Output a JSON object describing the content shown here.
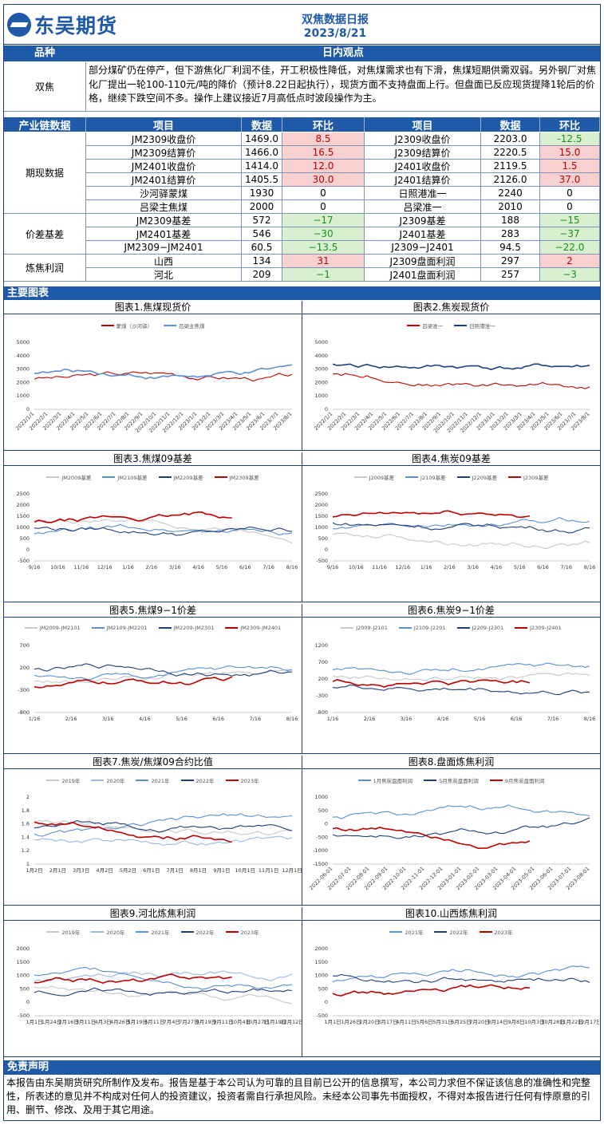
{
  "header": {
    "company": "东吴期货",
    "report_title": "双焦数据日报",
    "date": "2023/8/21",
    "logo_mark": "SCF"
  },
  "view_section": {
    "col_variety": "品种",
    "col_view": "日内观点",
    "variety": "双焦",
    "text": "部分煤矿仍在停产，但下游焦化厂利润不佳，开工积极性降低，对焦煤需求也有下滑，焦煤短期供需双弱。另外钢厂对焦化厂提出一轮100-110元/吨的降价（预计8.22日起执行），现货方面不支持盘面上行。但盘面已反应现货提降1轮后的价格，继续下跌空间不多。操作上建议接近7月高低点时波段操作为主。"
  },
  "table": {
    "headers": [
      "产业链数据",
      "项目",
      "数据",
      "环比",
      "项目",
      "数据",
      "环比"
    ],
    "groups": [
      {
        "name": "期现数据",
        "rows": [
          [
            "JM2309收盘价",
            "1469.0",
            "8.5",
            "J2309收盘价",
            "2203.0",
            "-12.5"
          ],
          [
            "JM2309结算价",
            "1466.0",
            "16.5",
            "J2309结算价",
            "2220.5",
            "15.0"
          ],
          [
            "JM2401收盘价",
            "1414.0",
            "12.0",
            "J2401收盘价",
            "2119.5",
            "1.5"
          ],
          [
            "JM2401结算价",
            "1405.5",
            "30.0",
            "J2401结算价",
            "2126.0",
            "37.0"
          ],
          [
            "沙河驿蒙煤",
            "1930",
            "0",
            "日照港准一",
            "2240",
            "0"
          ],
          [
            "吕梁主焦煤",
            "2000",
            "0",
            "吕梁准一",
            "2010",
            "0"
          ]
        ]
      },
      {
        "name": "价差基差",
        "rows": [
          [
            "JM2309基差",
            "572",
            "−17",
            "J2309基差",
            "188",
            "−15"
          ],
          [
            "JM2401基差",
            "546",
            "−30",
            "J2401基差",
            "283",
            "−37"
          ],
          [
            "JM2309−JM2401",
            "60.5",
            "−13.5",
            "J2309−J2401",
            "94.5",
            "−22.0"
          ]
        ]
      },
      {
        "name": "炼焦利润",
        "rows": [
          [
            "山西",
            "134",
            "31",
            "J2309盘面利润",
            "297",
            "2"
          ],
          [
            "河北",
            "209",
            "−1",
            "J2401盘面利润",
            "257",
            "−3"
          ]
        ]
      }
    ]
  },
  "charts_section": {
    "title": "主要图表"
  },
  "charts": [
    {
      "title": "图表1.焦煤现货价",
      "legend": [
        "蒙煤（沙河驿）",
        "吕梁主焦煤"
      ],
      "yticks": [
        "5000",
        "4000",
        "3000",
        "2000",
        "1000",
        "0"
      ],
      "xticks": [
        "2022/1/1",
        "2022/2/1",
        "2022/3/1",
        "2022/4/1",
        "2022/5/1",
        "2022/6/1",
        "2022/7/1",
        "2022/8/1",
        "2022/9/1",
        "2022/10/1",
        "2022/11/1",
        "2022/12/1",
        "2023/1/1",
        "2023/2/1",
        "2023/3/1",
        "2023/4/1",
        "2023/5/1",
        "2023/6/1",
        "2023/7/1",
        "2023/8/1"
      ]
    },
    {
      "title": "图表2.焦炭现货价",
      "legend": [
        "吕梁准一",
        "日照港准一"
      ],
      "yticks": [
        "5000",
        "4000",
        "3000",
        "2000",
        "1000",
        "0"
      ],
      "xticks": [
        "2022/1/1",
        "2022/2/1",
        "2022/3/1",
        "2022/4/1",
        "2022/5/1",
        "2022/6/1",
        "2022/7/1",
        "2022/8/1",
        "2022/9/1",
        "2022/10/1",
        "2022/11/1",
        "2022/12/1",
        "2023/1/1",
        "2023/2/1",
        "2023/3/1",
        "2023/4/1",
        "2023/5/1",
        "2023/6/1",
        "2023/7/1",
        "2023/8/1"
      ]
    },
    {
      "title": "图表3.焦煤09基差",
      "legend": [
        "JM2009基差",
        "JM2109基差",
        "JM2209基差",
        "JM2309基差"
      ],
      "yticks": [
        "2500",
        "2000",
        "1500",
        "1000",
        "500",
        "0",
        "-500"
      ],
      "xticks": [
        "9/16",
        "10/16",
        "11/16",
        "12/16",
        "1/16",
        "2/16",
        "3/16",
        "4/16",
        "5/16",
        "6/16",
        "7/16",
        "8/16"
      ]
    },
    {
      "title": "图表4.焦炭09基差",
      "legend": [
        "J2009基差",
        "J2109基差",
        "J2209基差",
        "J2309基差"
      ],
      "yticks": [
        "2500",
        "2000",
        "1500",
        "1000",
        "500",
        "0",
        "-500"
      ],
      "xticks": [
        "9/16",
        "10/16",
        "11/16",
        "12/16",
        "1/16",
        "2/16",
        "3/16",
        "4/16",
        "5/16",
        "6/16",
        "7/16",
        "8/16"
      ]
    },
    {
      "title": "图表5.焦煤9−1价差",
      "legend": [
        "JM2009-JM2101",
        "JM2109-JM2201",
        "JM2209-JM2301",
        "JM2309-JM2401"
      ],
      "yticks": [
        "700",
        "200",
        "-300",
        "-800"
      ],
      "xticks": [
        "1/16",
        "2/16",
        "3/16",
        "4/16",
        "5/16",
        "6/16",
        "7/16",
        "8/16"
      ]
    },
    {
      "title": "图表6.焦炭9−1价差",
      "legend": [
        "J2009-J2101",
        "J2109-J2201",
        "J2209-J2301",
        "J2309-J2401"
      ],
      "yticks": [
        "1200",
        "700",
        "200",
        "-300",
        "-800"
      ],
      "xticks": [
        "1/16",
        "2/16",
        "3/16",
        "4/16",
        "5/16",
        "6/16",
        "7/16",
        "8/16"
      ]
    },
    {
      "title": "图表7.焦炭/焦煤09合约比值",
      "legend": [
        "2019年",
        "2020年",
        "2021年",
        "2022年",
        "2023年"
      ],
      "yticks": [
        "2",
        "1.8",
        "1.6",
        "1.4",
        "1.2",
        "1"
      ],
      "xticks": [
        "1月2日",
        "2月1日",
        "3月3日",
        "4月2日",
        "5月2日",
        "6月1日",
        "7月1日",
        "8月1日",
        "9月1日",
        "10月1日",
        "11月1日",
        "12月1日"
      ]
    },
    {
      "title": "图表8.盘面炼焦利润",
      "legend": [
        "1月焦炭盘面利润",
        "5月焦炭盘面利润",
        "9月焦炭盘面利润"
      ],
      "yticks": [
        "1000",
        "500",
        "0",
        "-500",
        "-1000",
        "-1500"
      ],
      "xticks": [
        "2022-06-01",
        "2022-07-01",
        "2022-08-01",
        "2022-09-01",
        "2022-10-01",
        "2022-11-01",
        "2022-12-01",
        "2023-01-01",
        "2023-02-01",
        "2023-03-01",
        "2023-04-01",
        "2023-05-01",
        "2023-06-01",
        "2023-07-01",
        "2023-08-01"
      ]
    },
    {
      "title": "图表9.河北炼焦利润",
      "legend": [
        "2019年",
        "2020年",
        "2021年",
        "2022年",
        "2023年"
      ],
      "yticks": [
        "2000",
        "1500",
        "1000",
        "500",
        "0",
        "-500"
      ],
      "xticks": [
        "1月1日",
        "1月24日",
        "2月16日",
        "3月11日",
        "4月3日",
        "4月26日",
        "5月19日",
        "6月11日",
        "7月4日",
        "7月27日",
        "8月19日",
        "9月11日",
        "10月4日",
        "10月27日",
        "11月19日",
        "12月12日"
      ]
    },
    {
      "title": "图表10.山西炼焦利润",
      "legend": [
        "2021年",
        "2022年",
        "2023年"
      ],
      "yticks": [
        "2000",
        "1500",
        "1000",
        "500",
        "0",
        "-500"
      ],
      "xticks": [
        "1月1日",
        "1月26日",
        "2月20日",
        "3月17日",
        "4月11日",
        "5月6日",
        "5月31日",
        "6月25日",
        "7月20日",
        "8月14日",
        "9月8日",
        "10月3日",
        "10月28日",
        "11月22日",
        "12月17日"
      ]
    }
  ],
  "disclaimer": {
    "title": "免责声明",
    "text": "本报告由东吴期货研究所制作及发布。报告是基于本公司认为可靠的且目前已公开的信息撰写，本公司力求但不保证该信息的准确性和完整性，所表述的意见并不构成对任何人的投资建议，投资者需自行承担风险。未经本公司事先书面授权，不得对本报告进行任何有悖原意的引用、删节、修改、及用于其它用途。"
  },
  "colors": {
    "brand": "#1f5aa8",
    "red": "#c00000",
    "green": "#1a8f1a",
    "series": [
      "#c8c8c8",
      "#9bb8e0",
      "#5b8fd6",
      "#1f3f7a",
      "#c00000"
    ]
  }
}
